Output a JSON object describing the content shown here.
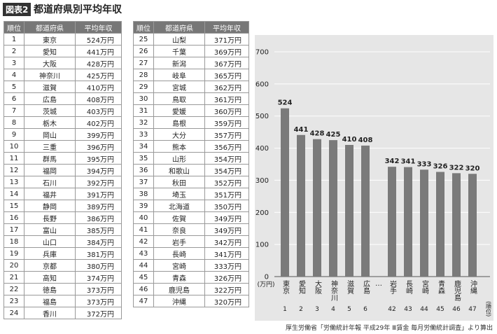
{
  "title_badge": "図表2",
  "title": "都道府県別平均年収",
  "tables": [
    {
      "columns": [
        "順位",
        "都道府県",
        "平均年収"
      ],
      "rows": [
        [
          1,
          "東京",
          "524万円"
        ],
        [
          2,
          "愛知",
          "441万円"
        ],
        [
          3,
          "大阪",
          "428万円"
        ],
        [
          4,
          "神奈川",
          "425万円"
        ],
        [
          5,
          "滋賀",
          "410万円"
        ],
        [
          6,
          "広島",
          "408万円"
        ],
        [
          7,
          "茨城",
          "403万円"
        ],
        [
          8,
          "栃木",
          "402万円"
        ],
        [
          9,
          "岡山",
          "399万円"
        ],
        [
          10,
          "三重",
          "396万円"
        ],
        [
          11,
          "群馬",
          "395万円"
        ],
        [
          12,
          "福岡",
          "394万円"
        ],
        [
          13,
          "石川",
          "392万円"
        ],
        [
          14,
          "福井",
          "391万円"
        ],
        [
          15,
          "静岡",
          "389万円"
        ],
        [
          16,
          "長野",
          "386万円"
        ],
        [
          17,
          "富山",
          "385万円"
        ],
        [
          18,
          "山口",
          "384万円"
        ],
        [
          19,
          "兵庫",
          "381万円"
        ],
        [
          20,
          "京都",
          "380万円"
        ],
        [
          21,
          "高知",
          "374万円"
        ],
        [
          22,
          "徳島",
          "373万円"
        ],
        [
          23,
          "福島",
          "373万円"
        ],
        [
          24,
          "香川",
          "372万円"
        ]
      ]
    },
    {
      "columns": [
        "順位",
        "都道府県",
        "平均年収"
      ],
      "rows": [
        [
          25,
          "山梨",
          "371万円"
        ],
        [
          26,
          "千葉",
          "369万円"
        ],
        [
          27,
          "新潟",
          "367万円"
        ],
        [
          28,
          "岐阜",
          "365万円"
        ],
        [
          29,
          "宮城",
          "362万円"
        ],
        [
          30,
          "鳥取",
          "361万円"
        ],
        [
          31,
          "愛媛",
          "360万円"
        ],
        [
          32,
          "島根",
          "359万円"
        ],
        [
          33,
          "大分",
          "357万円"
        ],
        [
          34,
          "熊本",
          "356万円"
        ],
        [
          35,
          "山形",
          "354万円"
        ],
        [
          36,
          "和歌山",
          "354万円"
        ],
        [
          37,
          "秋田",
          "352万円"
        ],
        [
          38,
          "埼玉",
          "351万円"
        ],
        [
          39,
          "北海道",
          "350万円"
        ],
        [
          40,
          "佐賀",
          "349万円"
        ],
        [
          41,
          "奈良",
          "349万円"
        ],
        [
          42,
          "岩手",
          "342万円"
        ],
        [
          43,
          "長崎",
          "341万円"
        ],
        [
          44,
          "宮崎",
          "333万円"
        ],
        [
          45,
          "青森",
          "326万円"
        ],
        [
          46,
          "鹿児島",
          "322万円"
        ],
        [
          47,
          "沖縄",
          "320万円"
        ]
      ]
    }
  ],
  "chart_data": {
    "type": "bar",
    "categories": [
      "東京",
      "愛知",
      "大阪",
      "神奈川",
      "滋賀",
      "広島",
      "岩手",
      "長崎",
      "宮崎",
      "青森",
      "鹿児島",
      "沖縄"
    ],
    "ranks": [
      1,
      2,
      3,
      4,
      5,
      6,
      42,
      43,
      44,
      45,
      46,
      47
    ],
    "values": [
      524,
      441,
      428,
      425,
      410,
      408,
      342,
      341,
      333,
      326,
      322,
      320
    ],
    "color": "#7a7a7a",
    "ylim": [
      0,
      700
    ],
    "yticks": [
      0,
      100,
      200,
      300,
      400,
      500,
      600,
      700
    ],
    "grid": true,
    "y_unit": "(万円)",
    "rank_label": "(順位)",
    "break_label": "…"
  },
  "source": "厚生労働省「労働統計年報 平成29年 Ⅲ賃金 毎月労働統計調査」より算出"
}
